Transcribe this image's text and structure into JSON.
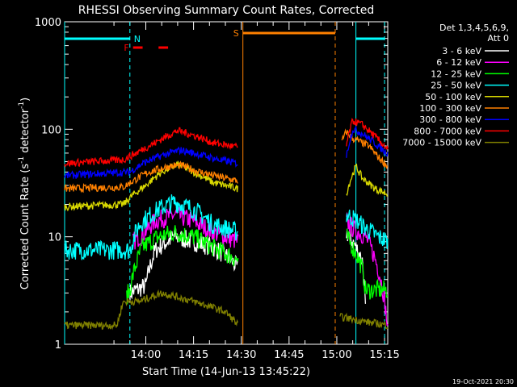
{
  "chart_data": {
    "type": "line",
    "title": "RHESSI Observing Summary Count Rates, Corrected",
    "xlabel": "Start Time (14-Jun-13 13:45:22)",
    "ylabel_main": "Corrected Count Rate (s",
    "ylabel_sup1": "-1",
    "ylabel_mid": " detector",
    "ylabel_sup2": "-1",
    "ylabel_end": ")",
    "yscale": "log",
    "ylim": [
      1,
      1000
    ],
    "xlim_minutes": [
      -10.5,
      91
    ],
    "x_ticks": [
      {
        "label": "14:00",
        "minute": 15
      },
      {
        "label": "14:15",
        "minute": 30
      },
      {
        "label": "14:30",
        "minute": 45
      },
      {
        "label": "14:45",
        "minute": 60
      },
      {
        "label": "15:00",
        "minute": 75
      },
      {
        "label": "15:15",
        "minute": 90
      }
    ],
    "y_ticks": [
      {
        "label": "1",
        "value": 1
      },
      {
        "label": "10",
        "value": 10
      },
      {
        "label": "100",
        "value": 100
      },
      {
        "label": "1000",
        "value": 1000
      }
    ],
    "legend_header": [
      "Det 1,3,4,5,6,9,",
      "Att 0"
    ],
    "legend_position": "right",
    "series": [
      {
        "name": "3 - 6 keV",
        "color": "#ffffff",
        "before": [
          [
            10,
            3.0
          ],
          [
            15,
            3.5
          ],
          [
            18,
            7.5
          ],
          [
            24,
            10
          ],
          [
            30,
            9
          ],
          [
            36,
            8
          ],
          [
            42,
            6
          ],
          [
            44,
            5
          ]
        ],
        "after": [
          [
            78,
            11
          ],
          [
            80,
            9
          ],
          [
            83,
            6
          ],
          [
            84,
            2
          ]
        ]
      },
      {
        "name": "6 - 12 keV",
        "color": "#ff00ff",
        "before": [
          [
            11,
            9
          ],
          [
            14,
            10.5
          ],
          [
            18,
            14
          ],
          [
            24,
            16
          ],
          [
            30,
            14
          ],
          [
            36,
            11
          ],
          [
            44,
            9
          ]
        ],
        "after": [
          [
            78,
            14
          ],
          [
            80,
            12
          ],
          [
            84,
            10
          ],
          [
            88,
            5
          ],
          [
            91,
            1.3
          ]
        ]
      },
      {
        "name": "12 - 25 keV",
        "color": "#00ff00",
        "before": [
          [
            9,
            2.8
          ],
          [
            10,
            3.2
          ],
          [
            14,
            8
          ],
          [
            19,
            10
          ],
          [
            24,
            11
          ],
          [
            30,
            10
          ],
          [
            36,
            8
          ],
          [
            44,
            6
          ]
        ],
        "after": [
          [
            78,
            10
          ],
          [
            80,
            8
          ],
          [
            83,
            5
          ],
          [
            84,
            3.2
          ],
          [
            91,
            3.2
          ]
        ]
      },
      {
        "name": "25 - 50 keV",
        "color": "#00ffff",
        "before": [
          [
            -10.5,
            7.5
          ],
          [
            10,
            7.5
          ],
          [
            13,
            13
          ],
          [
            19,
            18
          ],
          [
            24,
            21
          ],
          [
            30,
            18
          ],
          [
            36,
            13
          ],
          [
            44,
            11
          ]
        ],
        "after": [
          [
            78,
            16
          ],
          [
            80,
            15
          ],
          [
            84,
            12
          ],
          [
            88,
            10
          ],
          [
            91,
            9
          ]
        ]
      },
      {
        "name": "50 - 100 keV",
        "color": "#d8d800",
        "before": [
          [
            -10.5,
            19
          ],
          [
            8,
            20
          ],
          [
            10,
            23
          ],
          [
            15,
            30
          ],
          [
            20,
            40
          ],
          [
            25,
            47
          ],
          [
            30,
            40
          ],
          [
            36,
            32
          ],
          [
            44,
            28
          ]
        ],
        "after": [
          [
            78,
            25
          ],
          [
            81,
            45
          ],
          [
            83,
            35
          ],
          [
            87,
            28
          ],
          [
            91,
            25
          ]
        ]
      },
      {
        "name": "100 - 300 keV",
        "color": "#ff8000",
        "before": [
          [
            -10.5,
            28
          ],
          [
            8,
            29
          ],
          [
            11,
            33
          ],
          [
            16,
            40
          ],
          [
            22,
            45
          ],
          [
            26,
            46
          ],
          [
            32,
            40
          ],
          [
            38,
            36
          ],
          [
            44,
            33
          ]
        ],
        "after": [
          [
            76.5,
            75
          ],
          [
            78,
            95
          ],
          [
            80,
            82
          ],
          [
            85,
            70
          ],
          [
            88,
            55
          ],
          [
            91,
            45
          ]
        ]
      },
      {
        "name": "300 - 800 keV",
        "color": "#0000ff",
        "before": [
          [
            -10.5,
            37
          ],
          [
            10,
            40
          ],
          [
            14,
            48
          ],
          [
            20,
            57
          ],
          [
            26,
            64
          ],
          [
            32,
            58
          ],
          [
            38,
            52
          ],
          [
            44,
            48
          ]
        ],
        "after": [
          [
            78,
            55
          ],
          [
            80,
            100
          ],
          [
            82,
            95
          ],
          [
            86,
            78
          ],
          [
            90,
            62
          ],
          [
            91,
            60
          ]
        ]
      },
      {
        "name": "800 - 7000 keV",
        "color": "#ff0000",
        "before": [
          [
            -10.5,
            48
          ],
          [
            8,
            52
          ],
          [
            12,
            60
          ],
          [
            18,
            75
          ],
          [
            25,
            97
          ],
          [
            30,
            88
          ],
          [
            36,
            75
          ],
          [
            44,
            68
          ]
        ],
        "after": [
          [
            78,
            70
          ],
          [
            80,
            120
          ],
          [
            83,
            110
          ],
          [
            87,
            85
          ],
          [
            91,
            65
          ]
        ]
      },
      {
        "name": "7000 - 15000 keV",
        "color": "#808000",
        "before": [
          [
            -10.5,
            1.5
          ],
          [
            6,
            1.5
          ],
          [
            8,
            2.5
          ],
          [
            13,
            2.5
          ],
          [
            20,
            3
          ],
          [
            30,
            2.5
          ],
          [
            40,
            2
          ],
          [
            44,
            1.5
          ]
        ],
        "after": [
          [
            76,
            1.8
          ],
          [
            85,
            1.6
          ],
          [
            91,
            1.5
          ]
        ]
      }
    ],
    "markers": {
      "N": {
        "label": "N",
        "color": "#00ffff",
        "at": [
          -10.5,
          10,
          81,
          90
        ]
      },
      "F": {
        "label": "F",
        "color": "#ff0000",
        "segments": [
          [
            11,
            14
          ],
          [
            19,
            22
          ]
        ]
      },
      "S": {
        "label": "S",
        "color": "#ff8000",
        "start": 45.5,
        "end": 74.5
      }
    }
  },
  "timestamp": "19-Oct-2021 20:30"
}
